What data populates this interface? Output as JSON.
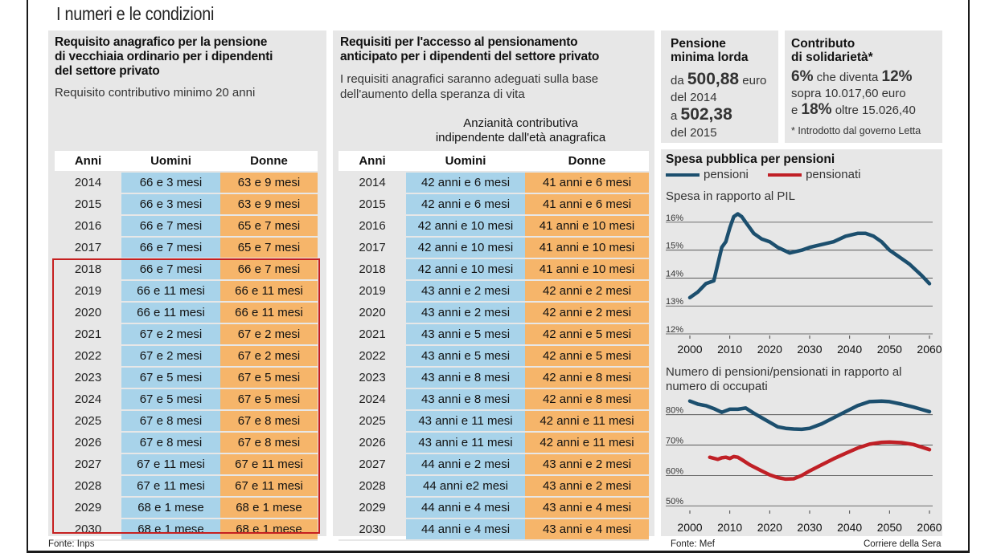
{
  "header": {
    "title": "I numeri e le condizioni"
  },
  "panel_vecchiaia": {
    "title_lines": [
      "Requisito anagrafico per la pensione",
      "di vecchiaia ordinario per i dipendenti",
      "del settore privato"
    ],
    "subtitle": "Requisito contributivo minimo 20 anni",
    "columns": [
      "Anni",
      "Uomini",
      "Donne"
    ],
    "rows": [
      [
        "2014",
        "66 e 3 mesi",
        "63 e 9 mesi"
      ],
      [
        "2015",
        "66 e 3 mesi",
        "63 e 9 mesi"
      ],
      [
        "2016",
        "66 e 7 mesi",
        "65 e 7 mesi"
      ],
      [
        "2017",
        "66 e 7 mesi",
        "65 e 7 mesi"
      ],
      [
        "2018",
        "66 e 7 mesi",
        "66 e 7 mesi"
      ],
      [
        "2019",
        "66 e 11 mesi",
        "66 e 11 mesi"
      ],
      [
        "2020",
        "66 e 11 mesi",
        "66 e 11 mesi"
      ],
      [
        "2021",
        "67 e 2 mesi",
        "67 e 2 mesi"
      ],
      [
        "2022",
        "67 e 2 mesi",
        "67 e 2 mesi"
      ],
      [
        "2023",
        "67 e 5 mesi",
        "67 e 5 mesi"
      ],
      [
        "2024",
        "67 e 5 mesi",
        "67 e 5 mesi"
      ],
      [
        "2025",
        "67 e 8 mesi",
        "67 e 8 mesi"
      ],
      [
        "2026",
        "67 e 8 mesi",
        "67 e 8 mesi"
      ],
      [
        "2027",
        "67 e 11 mesi",
        "67 e 11 mesi"
      ],
      [
        "2028",
        "67 e 11 mesi",
        "67 e 11 mesi"
      ],
      [
        "2029",
        "68 e 1 mese",
        "68 e 1 mese"
      ],
      [
        "2030",
        "68 e 1 mese",
        "68 e 1 mese"
      ]
    ],
    "source": "Fonte: Inps"
  },
  "panel_anticipato": {
    "title_lines": [
      "Requisiti per l'accesso al pensionamento",
      "anticipato per i dipendenti del settore privato"
    ],
    "subtitle_lines": [
      "I requisiti anagrafici saranno adeguati sulla base",
      "dell'aumento della speranza di vita"
    ],
    "group_header_lines": [
      "Anzianità contributiva",
      "indipendente dall'età anagrafica"
    ],
    "columns": [
      "Anni",
      "Uomini",
      "Donne"
    ],
    "rows": [
      [
        "2014",
        "42 anni e 6 mesi",
        "41 anni e 6 mesi"
      ],
      [
        "2015",
        "42 anni e 6 mesi",
        "41 anni e 6 mesi"
      ],
      [
        "2016",
        "42 anni e 10 mesi",
        "41 anni e 10 mesi"
      ],
      [
        "2017",
        "42 anni e 10 mesi",
        "41 anni e 10 mesi"
      ],
      [
        "2018",
        "42 anni e 10 mesi",
        "41 anni e 10 mesi"
      ],
      [
        "2019",
        "43 anni e 2 mesi",
        "42 anni e 2 mesi"
      ],
      [
        "2020",
        "43 anni e 2 mesi",
        "42 anni e 2 mesi"
      ],
      [
        "2021",
        "43 anni e 5 mesi",
        "42 anni e 5 mesi"
      ],
      [
        "2022",
        "43 anni e 5 mesi",
        "42 anni e 5 mesi"
      ],
      [
        "2023",
        "43 anni e 8 mesi",
        "42 anni e 8 mesi"
      ],
      [
        "2024",
        "43 anni e 8 mesi",
        "42 anni e 8 mesi"
      ],
      [
        "2025",
        "43 anni e 11 mesi",
        "42 anni e 11 mesi"
      ],
      [
        "2026",
        "43 anni e 11 mesi",
        "42 anni e 11 mesi"
      ],
      [
        "2027",
        "44 anni e 2 mesi",
        "43 anni e 2 mesi"
      ],
      [
        "2028",
        "44 anni e2 mesi",
        "43 anni e 2 mesi"
      ],
      [
        "2029",
        "44 anni e 4 mesi",
        "43 anni e 4 mesi"
      ],
      [
        "2030",
        "44 anni e 4 mesi",
        "43 anni e 4 mesi"
      ]
    ]
  },
  "pensione_minima": {
    "title_lines": [
      "Pensione",
      "minima lorda"
    ],
    "line1_pre": "da ",
    "value_2014": "500,88",
    "line1_post": " euro",
    "line2": "del 2014",
    "line3_pre": "a ",
    "value_2015": "502,38",
    "line4": "del 2015"
  },
  "contributo": {
    "title_lines": [
      "Contributo",
      "di solidarietà*"
    ],
    "pct1": "6%",
    "mid1": " che diventa ",
    "pct2": "12%",
    "line2": "sopra 10.017,60 euro",
    "line3_pre": "e ",
    "pct3": "18%",
    "line3_post": " oltre 15.026,40",
    "footnote": "* Introdotto dal governo Letta"
  },
  "spesa": {
    "title": "Spesa pubblica per pensioni",
    "legend": [
      "pensioni",
      "pensionati"
    ],
    "colors": {
      "pensioni": "#1c4f6e",
      "pensionati": "#c02026"
    },
    "source": "Fonte: Mef",
    "credit": "Corriere della Sera"
  },
  "chart_data": [
    {
      "type": "line",
      "title": "Spesa in rapporto al PIL",
      "x": [
        2000,
        2002,
        2004,
        2006,
        2008,
        2009,
        2010,
        2011,
        2012,
        2013,
        2014,
        2016,
        2018,
        2020,
        2022,
        2025,
        2028,
        2030,
        2033,
        2036,
        2039,
        2042,
        2044,
        2046,
        2048,
        2050,
        2052,
        2055,
        2058,
        2060
      ],
      "series": [
        {
          "name": "pensioni",
          "values": [
            13.3,
            13.5,
            13.8,
            13.9,
            15.1,
            15.3,
            15.8,
            16.2,
            16.3,
            16.2,
            16.0,
            15.6,
            15.4,
            15.3,
            15.1,
            14.9,
            15.0,
            15.1,
            15.2,
            15.3,
            15.5,
            15.6,
            15.6,
            15.5,
            15.3,
            15.0,
            14.8,
            14.5,
            14.1,
            13.8
          ]
        }
      ],
      "yticks": [
        "12%",
        "13%",
        "14%",
        "15%",
        "16%"
      ],
      "ylim": [
        12,
        16.4
      ],
      "xticks": [
        2000,
        2010,
        2020,
        2030,
        2040,
        2050,
        2060
      ],
      "grid": true
    },
    {
      "type": "line",
      "title": "Numero di pensioni/pensionati in rapporto al numero di occupati",
      "x_pensioni": [
        2000,
        2002,
        2004,
        2006,
        2008,
        2010,
        2012,
        2014,
        2016,
        2018,
        2020,
        2022,
        2024,
        2026,
        2028,
        2030,
        2033,
        2036,
        2039,
        2042,
        2045,
        2048,
        2050,
        2053,
        2056,
        2060
      ],
      "x_pensionati": [
        2005,
        2007,
        2008,
        2009,
        2010,
        2011,
        2012,
        2013,
        2015,
        2018,
        2020,
        2022,
        2024,
        2026,
        2028,
        2030,
        2033,
        2036,
        2039,
        2042,
        2045,
        2048,
        2050,
        2053,
        2056,
        2060
      ],
      "series": [
        {
          "name": "pensioni",
          "values": [
            84.5,
            83.5,
            83.0,
            82.0,
            80.8,
            81.8,
            81.8,
            82.2,
            80.5,
            79.0,
            77.5,
            76.0,
            75.5,
            75.3,
            75.2,
            75.5,
            77.0,
            79.0,
            81.0,
            83.0,
            84.3,
            84.5,
            84.3,
            83.5,
            82.5,
            81.0
          ]
        },
        {
          "name": "pensionati",
          "values": [
            66.0,
            65.3,
            65.8,
            66.0,
            65.6,
            66.2,
            66.0,
            65.2,
            63.5,
            61.5,
            60.2,
            59.3,
            58.8,
            58.9,
            60.0,
            61.5,
            63.5,
            65.5,
            67.3,
            69.0,
            70.3,
            70.9,
            71.0,
            70.8,
            70.2,
            68.5
          ]
        }
      ],
      "yticks": [
        "50%",
        "60%",
        "70%",
        "80%"
      ],
      "ylim": [
        49,
        86
      ],
      "xticks": [
        2000,
        2010,
        2020,
        2030,
        2040,
        2050,
        2060
      ],
      "grid": true
    }
  ]
}
